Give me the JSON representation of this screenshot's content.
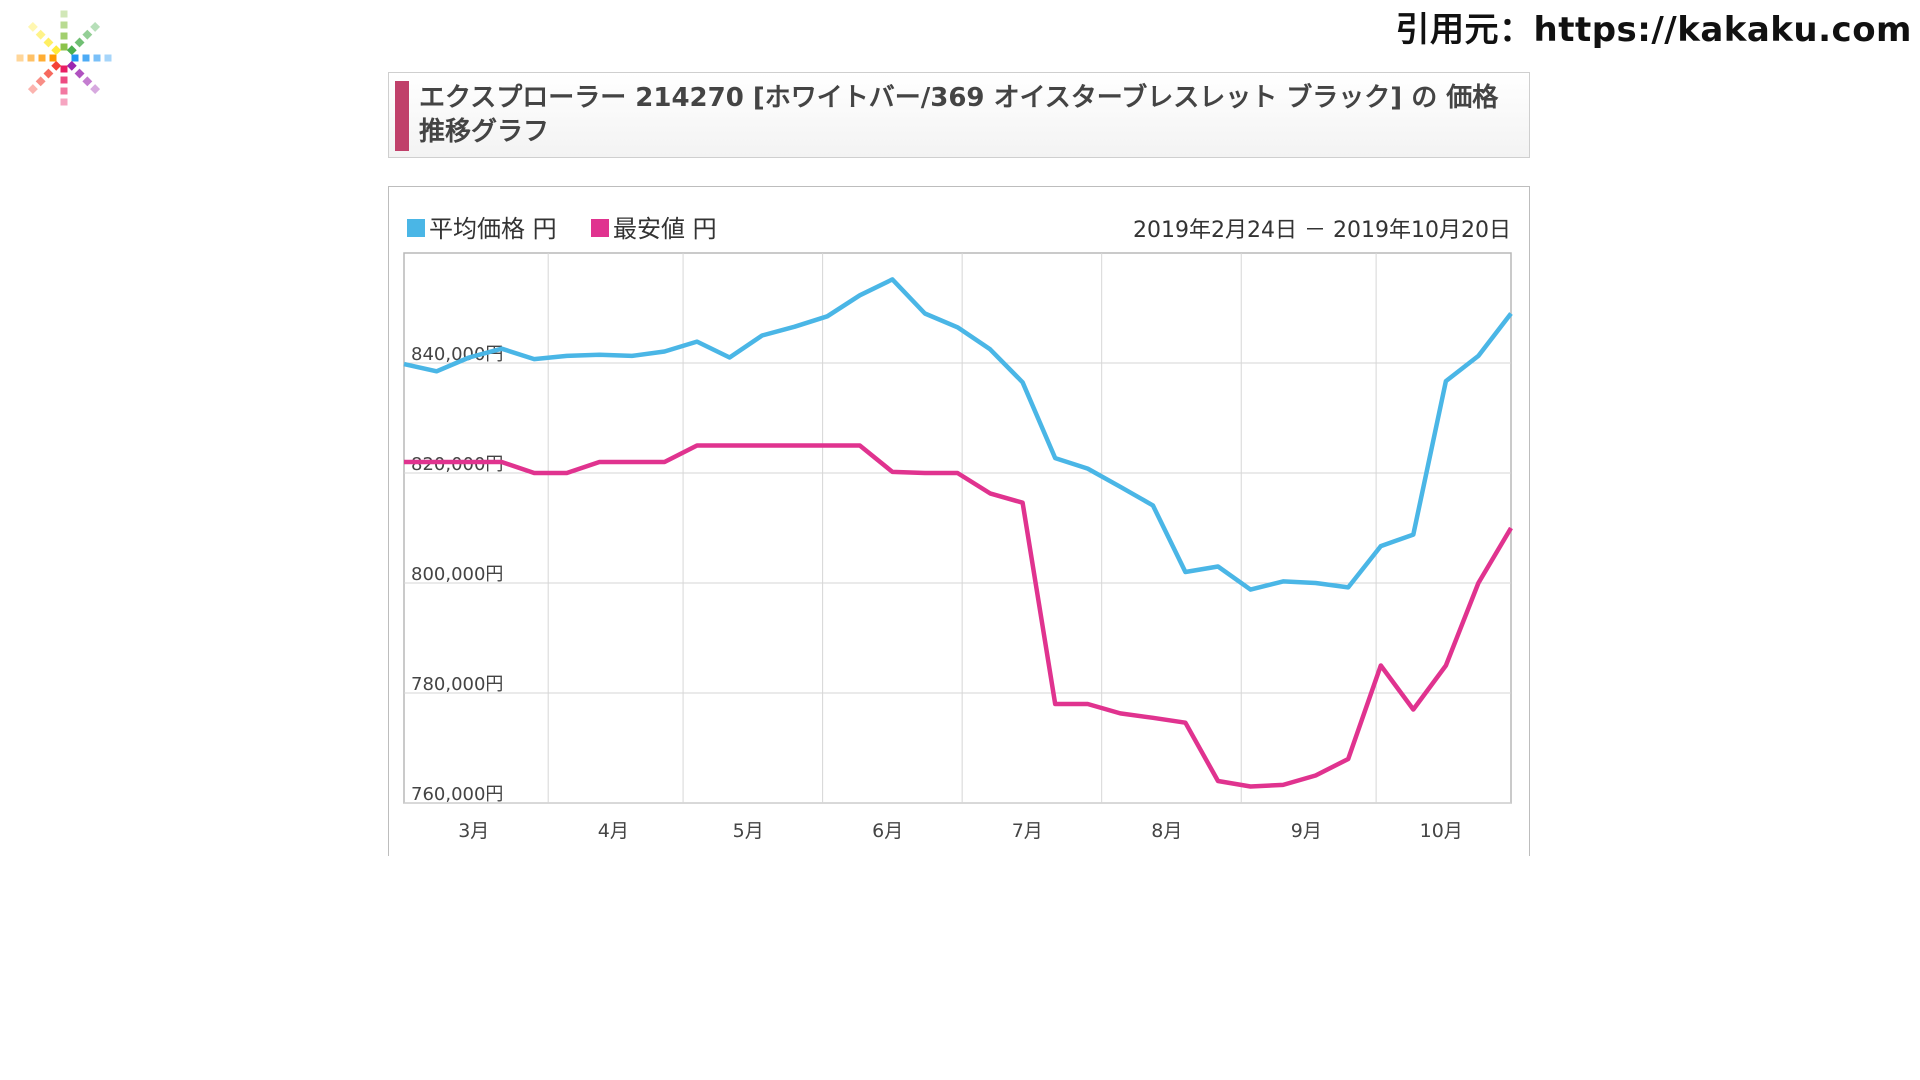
{
  "source_label": "引用元：https://kakaku.com",
  "title": "エクスプローラー 214270 [ホワイトバー/369 オイスターブレスレット ブラック] の 価格推移グラフ",
  "chart_data": {
    "type": "line",
    "date_range": "2019年2月24日 － 2019年10月20日",
    "x_tick_labels": [
      "3月",
      "4月",
      "5月",
      "6月",
      "7月",
      "8月",
      "9月",
      "10月"
    ],
    "y_tick_labels": [
      "840,000円",
      "820,000円",
      "800,000円",
      "780,000円",
      "760,000円"
    ],
    "y_ticks": [
      840000,
      820000,
      800000,
      780000,
      760000
    ],
    "ylim": [
      760000,
      860000
    ],
    "xlim": [
      "2019-02-24",
      "2019-10-20"
    ],
    "grid": true,
    "legend_position": "top-left",
    "series": [
      {
        "name": "平均価格 円",
        "color": "#4ab6e6",
        "points": [
          [
            "2019-02-24",
            839800
          ],
          [
            "2019-03-03",
            838500
          ],
          [
            "2019-03-10",
            841000
          ],
          [
            "2019-03-17",
            842600
          ],
          [
            "2019-03-24",
            840700
          ],
          [
            "2019-03-31",
            841300
          ],
          [
            "2019-04-07",
            841500
          ],
          [
            "2019-04-14",
            841300
          ],
          [
            "2019-04-21",
            842100
          ],
          [
            "2019-04-28",
            843900
          ],
          [
            "2019-05-05",
            841000
          ],
          [
            "2019-05-12",
            845000
          ],
          [
            "2019-05-19",
            846600
          ],
          [
            "2019-05-26",
            848500
          ],
          [
            "2019-06-02",
            852300
          ],
          [
            "2019-06-09",
            855200
          ],
          [
            "2019-06-16",
            849000
          ],
          [
            "2019-06-23",
            846500
          ],
          [
            "2019-06-30",
            842500
          ],
          [
            "2019-07-07",
            836500
          ],
          [
            "2019-07-14",
            822700
          ],
          [
            "2019-07-21",
            820800
          ],
          [
            "2019-07-28",
            817500
          ],
          [
            "2019-08-04",
            814100
          ],
          [
            "2019-08-11",
            802000
          ],
          [
            "2019-08-18",
            803000
          ],
          [
            "2019-08-25",
            798800
          ],
          [
            "2019-09-01",
            800300
          ],
          [
            "2019-09-08",
            800000
          ],
          [
            "2019-09-15",
            799200
          ],
          [
            "2019-09-22",
            806700
          ],
          [
            "2019-09-29",
            808800
          ],
          [
            "2019-10-06",
            836700
          ],
          [
            "2019-10-13",
            841300
          ],
          [
            "2019-10-20",
            849000
          ]
        ]
      },
      {
        "name": "最安値 円",
        "color": "#e0338f",
        "points": [
          [
            "2019-02-24",
            822000
          ],
          [
            "2019-03-03",
            822000
          ],
          [
            "2019-03-10",
            822000
          ],
          [
            "2019-03-17",
            822000
          ],
          [
            "2019-03-24",
            820000
          ],
          [
            "2019-03-31",
            820000
          ],
          [
            "2019-04-07",
            822000
          ],
          [
            "2019-04-14",
            822000
          ],
          [
            "2019-04-21",
            822000
          ],
          [
            "2019-04-28",
            825000
          ],
          [
            "2019-05-05",
            825000
          ],
          [
            "2019-05-12",
            825000
          ],
          [
            "2019-05-19",
            825000
          ],
          [
            "2019-05-26",
            825000
          ],
          [
            "2019-06-02",
            825000
          ],
          [
            "2019-06-09",
            820200
          ],
          [
            "2019-06-16",
            820000
          ],
          [
            "2019-06-23",
            820000
          ],
          [
            "2019-06-30",
            816300
          ],
          [
            "2019-07-07",
            814600
          ],
          [
            "2019-07-14",
            778000
          ],
          [
            "2019-07-21",
            778000
          ],
          [
            "2019-07-28",
            776300
          ],
          [
            "2019-08-04",
            775500
          ],
          [
            "2019-08-11",
            774600
          ],
          [
            "2019-08-18",
            764000
          ],
          [
            "2019-08-25",
            763000
          ],
          [
            "2019-09-01",
            763300
          ],
          [
            "2019-09-08",
            765000
          ],
          [
            "2019-09-15",
            768000
          ],
          [
            "2019-09-22",
            785000
          ],
          [
            "2019-09-29",
            777000
          ],
          [
            "2019-10-06",
            785000
          ],
          [
            "2019-10-13",
            800000
          ],
          [
            "2019-10-20",
            810000
          ]
        ]
      }
    ]
  },
  "x_tick_dates": [
    "2019-03-11",
    "2019-04-10",
    "2019-05-09",
    "2019-06-08",
    "2019-07-08",
    "2019-08-07",
    "2019-09-06",
    "2019-10-05"
  ],
  "x_grid_dates": [
    "2019-03-27",
    "2019-04-25",
    "2019-05-25",
    "2019-06-24",
    "2019-07-24",
    "2019-08-23",
    "2019-09-21"
  ]
}
